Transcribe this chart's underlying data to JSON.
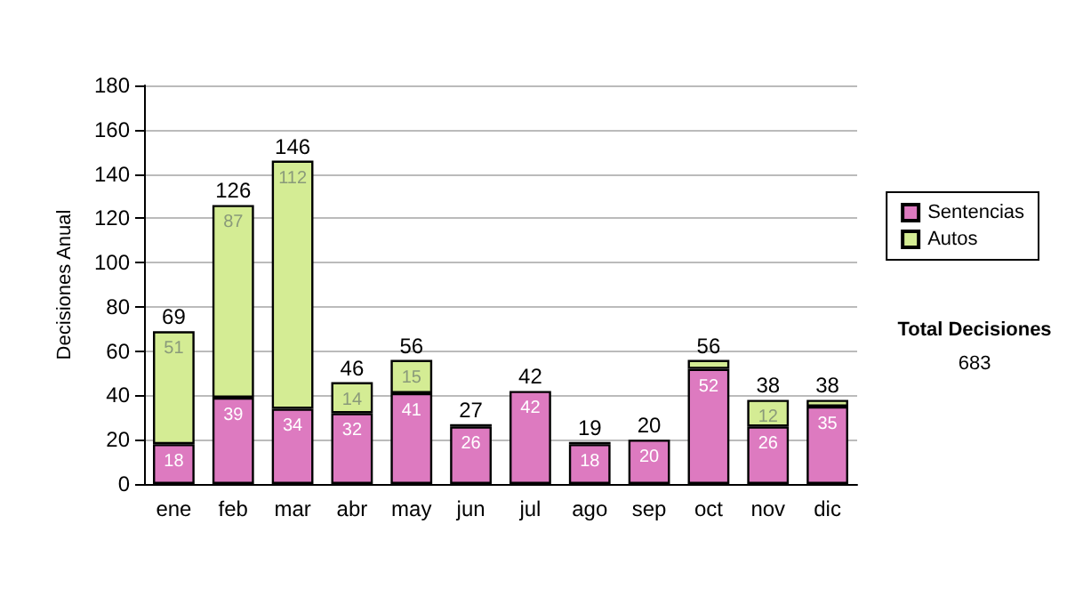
{
  "chart_data": {
    "type": "bar",
    "stacked": true,
    "ylabel": "Decisiones Anual",
    "categories": [
      "ene",
      "feb",
      "mar",
      "abr",
      "may",
      "jun",
      "jul",
      "ago",
      "sep",
      "oct",
      "nov",
      "dic"
    ],
    "series": [
      {
        "name": "Sentencias",
        "color": "#dd7ac0",
        "values": [
          18,
          39,
          34,
          32,
          41,
          26,
          42,
          18,
          20,
          52,
          26,
          35
        ],
        "value_labels": [
          "18",
          "39",
          "34",
          "32",
          "41",
          "26",
          "42",
          "18",
          "20",
          "52",
          "26",
          "35"
        ]
      },
      {
        "name": "Autos",
        "color": "#d4ec94",
        "values": [
          51,
          87,
          112,
          14,
          15,
          1,
          0,
          1,
          0,
          4,
          12,
          3
        ],
        "value_labels": [
          "51",
          "87",
          "112",
          "14",
          "15",
          null,
          null,
          null,
          null,
          null,
          "12",
          null
        ]
      }
    ],
    "totals": [
      "69",
      "126",
      "146",
      "46",
      "56",
      "27",
      "42",
      "19",
      "20",
      "56",
      "38",
      "38"
    ],
    "ylim": [
      0,
      180
    ],
    "yticks": [
      0,
      20,
      40,
      60,
      80,
      100,
      120,
      140,
      160,
      180
    ],
    "grid": "y",
    "legend": "right",
    "annotations": [
      "Total Decisiones",
      "683"
    ]
  }
}
